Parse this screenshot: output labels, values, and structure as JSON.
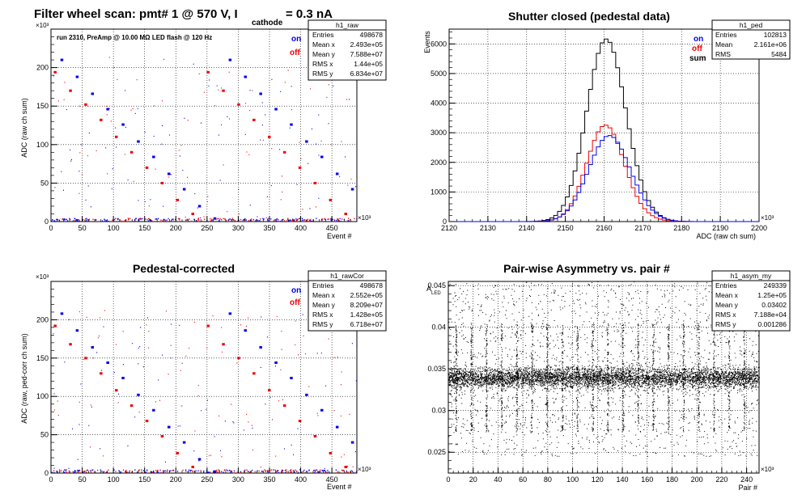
{
  "panels": [
    {
      "id": "raw",
      "title": "Filter wheel scan: pmt#   1 @   570 V, I",
      "title_subscript": "cathode",
      "title_suffix": "= 0.3 nA",
      "annotation": "run 2310, PreAmp @ 10.00 MΩ LED flash @  120 Hz",
      "xlabel": "Event #",
      "ylabel": "ADC (raw ch sum)",
      "x_exponent": "×10³",
      "y_exponent": "×10³",
      "legend": [
        {
          "label": "on",
          "color": "#0000ee"
        },
        {
          "label": "off",
          "color": "#ee0000"
        }
      ],
      "stats": {
        "name": "h1_raw",
        "rows": [
          {
            "label": "Entries",
            "value": "498678"
          },
          {
            "label": "Mean x",
            "value": "2.493e+05"
          },
          {
            "label": "Mean y",
            "value": "7.588e+07"
          },
          {
            "label": "RMS x",
            "value": "1.44e+05"
          },
          {
            "label": "RMS y",
            "value": "6.834e+07"
          }
        ]
      },
      "chart_data": {
        "type": "scatter",
        "x_range": [
          0,
          490
        ],
        "y_range": [
          0,
          250
        ],
        "x_ticks": [
          0,
          50,
          100,
          150,
          200,
          250,
          300,
          350,
          400,
          450
        ],
        "y_ticks": [
          0,
          50,
          100,
          150,
          200
        ],
        "grid": true,
        "period": 24.5,
        "levels_on": [
          210,
          188,
          166,
          146,
          126,
          104,
          84,
          62,
          42,
          20,
          4
        ],
        "levels_off": [
          194,
          170,
          152,
          132,
          110,
          90,
          70,
          50,
          28,
          10
        ]
      }
    },
    {
      "id": "ped",
      "title": "Shutter closed (pedestal data)",
      "xlabel": "ADC (raw ch sum)",
      "ylabel": "Events",
      "x_exponent": "×10³",
      "legend": [
        {
          "label": "on",
          "color": "#0000ee"
        },
        {
          "label": "off",
          "color": "#ee0000"
        },
        {
          "label": "sum",
          "color": "#000000"
        }
      ],
      "stats": {
        "name": "h1_ped",
        "rows": [
          {
            "label": "Entries",
            "value": "102813"
          },
          {
            "label": "Mean",
            "value": "2.161e+06"
          },
          {
            "label": "RMS",
            "value": "5484"
          }
        ]
      },
      "chart_data": {
        "type": "line",
        "x_range": [
          2120,
          2200
        ],
        "y_range": [
          0,
          6500
        ],
        "x_ticks": [
          2120,
          2130,
          2140,
          2150,
          2160,
          2170,
          2180,
          2190,
          2200
        ],
        "y_ticks": [
          0,
          1000,
          2000,
          3000,
          4000,
          5000,
          6000
        ],
        "grid": true,
        "series": [
          {
            "name": "sum",
            "color": "#000000",
            "peak": 6150,
            "mean": 2160.5,
            "sigma": 5.0
          },
          {
            "name": "off",
            "color": "#ee0000",
            "peak": 3250,
            "mean": 2160.3,
            "sigma": 4.8
          },
          {
            "name": "on",
            "color": "#0000ee",
            "peak": 2900,
            "mean": 2161.3,
            "sigma": 5.3
          }
        ]
      }
    },
    {
      "id": "rawCor",
      "title": "Pedestal-corrected",
      "xlabel": "Event #",
      "ylabel": "ADC (raw, ped-corr ch sum)",
      "x_exponent": "×10³",
      "y_exponent": "×10³",
      "legend": [
        {
          "label": "on",
          "color": "#0000ee"
        },
        {
          "label": "off",
          "color": "#ee0000"
        }
      ],
      "stats": {
        "name": "h1_rawCor",
        "rows": [
          {
            "label": "Entries",
            "value": "498678"
          },
          {
            "label": "Mean x",
            "value": "2.552e+05"
          },
          {
            "label": "Mean y",
            "value": "8.209e+07"
          },
          {
            "label": "RMS x",
            "value": "1.428e+05"
          },
          {
            "label": "RMS y",
            "value": "6.718e+07"
          }
        ]
      },
      "chart_data": {
        "type": "scatter",
        "x_range": [
          0,
          490
        ],
        "y_range": [
          0,
          250
        ],
        "x_ticks": [
          0,
          50,
          100,
          150,
          200,
          250,
          300,
          350,
          400,
          450
        ],
        "y_ticks": [
          0,
          50,
          100,
          150,
          200
        ],
        "grid": true,
        "period": 24.5,
        "levels_on": [
          208,
          186,
          164,
          144,
          124,
          102,
          82,
          60,
          40,
          18,
          2
        ],
        "levels_off": [
          192,
          168,
          150,
          130,
          108,
          88,
          68,
          48,
          26,
          8
        ]
      }
    },
    {
      "id": "asym",
      "title": "Pair-wise Asymmetry vs. pair #",
      "xlabel": "Pair #",
      "ylabel": "A",
      "ylabel_sub": "LED",
      "x_exponent": "×10³",
      "stats": {
        "name": "h1_asym_my",
        "rows": [
          {
            "label": "Entries",
            "value": "249339"
          },
          {
            "label": "Mean x",
            "value": "1.25e+05"
          },
          {
            "label": "Mean y",
            "value": "0.03402"
          },
          {
            "label": "RMS x",
            "value": "7.188e+04"
          },
          {
            "label": "RMS y",
            "value": "0.001286"
          }
        ]
      },
      "chart_data": {
        "type": "scatter",
        "x_range": [
          0,
          250
        ],
        "y_range": [
          0.0225,
          0.0455
        ],
        "x_ticks": [
          0,
          20,
          40,
          60,
          80,
          100,
          120,
          140,
          160,
          180,
          200,
          220,
          240
        ],
        "y_ticks": [
          0.025,
          0.03,
          0.035,
          0.04,
          0.045
        ],
        "y_tick_labels": [
          "0.025",
          "0.03",
          "0.035",
          "0.04",
          "0.045"
        ],
        "grid": true,
        "band_center": 0.0339,
        "band_halfwidth": 0.0011,
        "spike_period": 12.2
      }
    }
  ]
}
